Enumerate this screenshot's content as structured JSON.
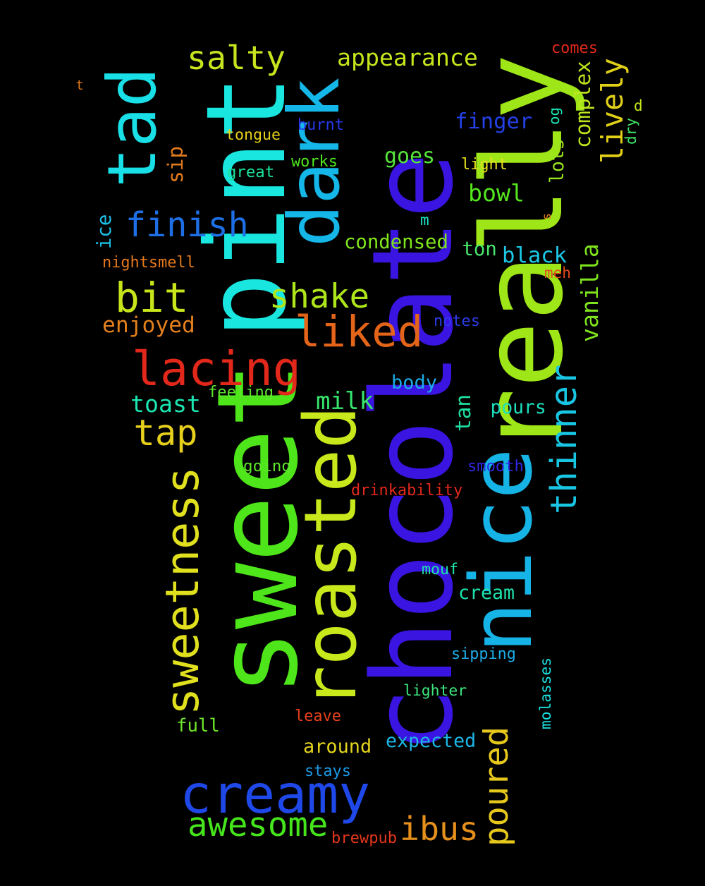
{
  "background": "#000000",
  "words": [
    {
      "text": "chocolate",
      "color": "#3a14e0"
    },
    {
      "text": "sweet",
      "color": "#4ee51a"
    },
    {
      "text": "nice",
      "color": "#16b4e6"
    },
    {
      "text": "really",
      "color": "#9ee617"
    },
    {
      "text": "pint",
      "color": "#18e6df"
    },
    {
      "text": "dark",
      "color": "#15b6e8"
    },
    {
      "text": "roasted",
      "color": "#c9e81c"
    },
    {
      "text": "tad",
      "color": "#18e0e6"
    },
    {
      "text": "creamy",
      "color": "#1f48e8"
    },
    {
      "text": "sweetness",
      "color": "#e0e01e"
    },
    {
      "text": "lacing",
      "color": "#e2281a"
    },
    {
      "text": "liked",
      "color": "#e4641a"
    },
    {
      "text": "vanilla",
      "color": "#7ee41e"
    },
    {
      "text": "bit",
      "color": "#c8e41a"
    },
    {
      "text": "shake",
      "color": "#aee61c"
    },
    {
      "text": "finish",
      "color": "#1e6fe6"
    },
    {
      "text": "salty",
      "color": "#c8e41e"
    },
    {
      "text": "tap",
      "color": "#e6d01c"
    },
    {
      "text": "awesome",
      "color": "#46e61c"
    },
    {
      "text": "thinner",
      "color": "#18c6e4"
    },
    {
      "text": "poured",
      "color": "#e6c81c"
    },
    {
      "text": "ibus",
      "color": "#e6901c"
    },
    {
      "text": "appearance",
      "color": "#c4e61c"
    },
    {
      "text": "lively",
      "color": "#e0d018"
    },
    {
      "text": "sip",
      "color": "#e27a1e"
    },
    {
      "text": "toast",
      "color": "#1ce6b2"
    },
    {
      "text": "milk",
      "color": "#36e66e"
    },
    {
      "text": "bowl",
      "color": "#54e61e"
    },
    {
      "text": "goes",
      "color": "#56e63c"
    },
    {
      "text": "finger",
      "color": "#2440e6"
    },
    {
      "text": "lots",
      "color": "#9ae61e"
    },
    {
      "text": "complex",
      "color": "#bee61e"
    },
    {
      "text": "ice",
      "color": "#1cc0e6"
    },
    {
      "text": "black",
      "color": "#1cc8e6"
    },
    {
      "text": "condensed",
      "color": "#80e61c"
    },
    {
      "text": "enjoyed",
      "color": "#e4801c"
    },
    {
      "text": "tan",
      "color": "#1ee0a2"
    },
    {
      "text": "ton",
      "color": "#46e66c"
    },
    {
      "text": "body",
      "color": "#1cace6"
    },
    {
      "text": "pours",
      "color": "#1ce0be"
    },
    {
      "text": "cream",
      "color": "#1ee2ae"
    },
    {
      "text": "around",
      "color": "#e2d41e"
    },
    {
      "text": "expected",
      "color": "#1cb6e6"
    },
    {
      "text": "full",
      "color": "#6ee62a"
    },
    {
      "text": "molasses",
      "color": "#1ce0e0"
    },
    {
      "text": "comes",
      "color": "#e2281c"
    },
    {
      "text": "tongue",
      "color": "#e6d01c"
    },
    {
      "text": "burnt",
      "color": "#2838e6"
    },
    {
      "text": "works",
      "color": "#4ee61e"
    },
    {
      "text": "light",
      "color": "#e6e01e"
    },
    {
      "text": "great",
      "color": "#1ce29a"
    },
    {
      "text": "nightsmell",
      "color": "#e4781c"
    },
    {
      "text": "notes",
      "color": "#2a3ce6"
    },
    {
      "text": "feeling",
      "color": "#5ee62e"
    },
    {
      "text": "going",
      "color": "#5ee62a"
    },
    {
      "text": "smooth",
      "color": "#3026e4"
    },
    {
      "text": "drinkability",
      "color": "#e2281c"
    },
    {
      "text": "mouf",
      "color": "#1ee6aa"
    },
    {
      "text": "sipping",
      "color": "#1cace6"
    },
    {
      "text": "lighter",
      "color": "#3ce67e"
    },
    {
      "text": "leave",
      "color": "#e6401c"
    },
    {
      "text": "stays",
      "color": "#1c9ae6"
    },
    {
      "text": "brewpub",
      "color": "#e4361c"
    },
    {
      "text": "og",
      "color": "#1ce6b6"
    },
    {
      "text": "meh",
      "color": "#e44a1c"
    },
    {
      "text": "dry",
      "color": "#3ee666"
    },
    {
      "text": "d",
      "color": "#c4e61c"
    },
    {
      "text": "t",
      "color": "#e4781c"
    },
    {
      "text": "m",
      "color": "#1ce6cc"
    },
    {
      "text": "s",
      "color": "#e4781c"
    }
  ]
}
